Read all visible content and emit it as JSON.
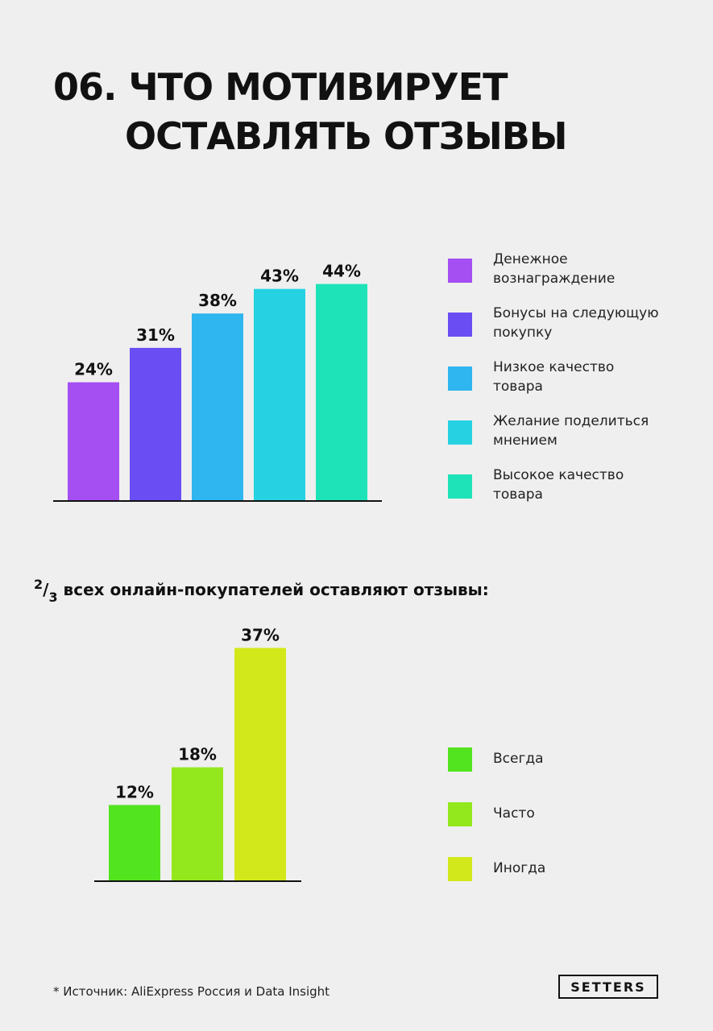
{
  "title": {
    "line1": "06. ЧТО МОТИВИРУЕТ",
    "line2": "ОСТАВЛЯТЬ ОТЗЫВЫ"
  },
  "subtitle": {
    "numerator": "2",
    "slash": "/",
    "denominator": "3",
    "text": " всех онлайн-покупателей оставляют отзывы:"
  },
  "source": "* Источник: AliExpress Россия и Data Insight",
  "logo": "SETTERS",
  "chart_data": [
    {
      "type": "bar",
      "categories": [
        "Денежное вознаграждение",
        "Бонусы на следующую покупку",
        "Низкое качество товара",
        "Желание поделиться мнением",
        "Высокое качество товара"
      ],
      "values": [
        24,
        31,
        38,
        43,
        44
      ],
      "value_labels": [
        "24%",
        "31%",
        "38%",
        "43%",
        "44%"
      ],
      "legend_labels": [
        "Денежное\nвознаграждение",
        "Бонусы на следующую\nпокупку",
        "Низкое качество\nтовара",
        "Желание поделиться\nмнением",
        "Высокое качество\nтовара"
      ],
      "colors": [
        "#a54ef2",
        "#6a4ef3",
        "#2fb5ef",
        "#26d2e2",
        "#1ee3b8"
      ],
      "ylim": [
        0,
        48
      ],
      "legend_position": "right",
      "grid": false
    },
    {
      "type": "bar",
      "categories": [
        "Всегда",
        "Часто",
        "Иногда"
      ],
      "values": [
        12,
        18,
        37
      ],
      "value_labels": [
        "12%",
        "18%",
        "37%"
      ],
      "legend_labels": [
        "Всегда",
        "Часто",
        "Иногда"
      ],
      "colors": [
        "#52e41f",
        "#92e71d",
        "#d3e81a"
      ],
      "ylim": [
        0,
        48
      ],
      "legend_position": "right",
      "grid": false
    }
  ]
}
